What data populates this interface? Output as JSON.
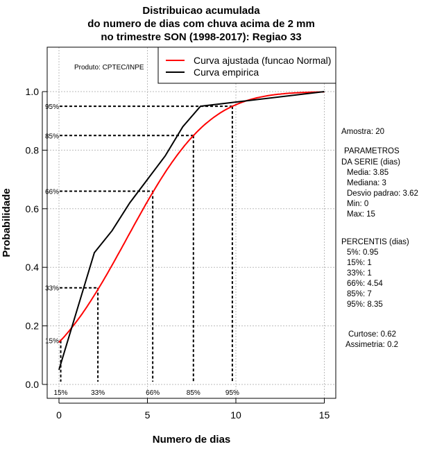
{
  "chart_data": {
    "type": "line",
    "title": [
      "Distribuicao acumulada",
      "do numero de dias com chuva acima de 2 mm",
      "no trimestre SON (1998-2017): Regiao 33"
    ],
    "xlabel": "Numero de dias",
    "ylabel": "Probabilidade",
    "xlim": [
      0,
      15
    ],
    "ylim": [
      0,
      1
    ],
    "xticks": [
      "0",
      "5",
      "10",
      "15"
    ],
    "yticks": [
      "0.0",
      "0.2",
      "0.4",
      "0.6",
      "0.8",
      "1.0"
    ],
    "grid": true,
    "legend_position": "top-right",
    "credit": "Produto: CPTEC/INPE",
    "series": [
      {
        "name": "Curva ajustada (funcao Normal)",
        "color": "#ff0000",
        "distribution": "normal",
        "mean": 3.85,
        "sd": 3.62,
        "x_range": [
          0,
          15
        ]
      },
      {
        "name": "Curva empirica",
        "color": "#000000",
        "x": [
          0,
          2,
          3,
          4,
          5,
          6,
          7,
          8,
          15
        ],
        "y": [
          0.05,
          0.45,
          0.525,
          0.62,
          0.7,
          0.78,
          0.88,
          0.95,
          1.0
        ]
      }
    ],
    "percentile_markers": [
      {
        "label": "15%",
        "p": 0.15,
        "x": 0.1
      },
      {
        "label": "33%",
        "p": 0.33,
        "x": 2.2
      },
      {
        "label": "66%",
        "p": 0.66,
        "x": 5.3
      },
      {
        "label": "85%",
        "p": 0.85,
        "x": 7.6
      },
      {
        "label": "95%",
        "p": 0.95,
        "x": 9.8
      }
    ]
  },
  "stats": {
    "amostra": "Amostra: 20",
    "param_title1": "PARAMETROS",
    "param_title2": "DA SERIE (dias)",
    "media": "Media: 3.85",
    "mediana": "Mediana: 3",
    "desvio": "Desvio padrao: 3.62",
    "min": "Min: 0",
    "max": "Max: 15",
    "perc_title": "PERCENTIS (dias)",
    "p5": "5%: 0.95",
    "p15": "15%: 1",
    "p33": "33%: 1",
    "p66": "66%: 4.54",
    "p85": "85%: 7",
    "p95": "95%: 8.35",
    "curtose": "Curtose: 0.62",
    "assimetria": "Assimetria: 0.2"
  }
}
